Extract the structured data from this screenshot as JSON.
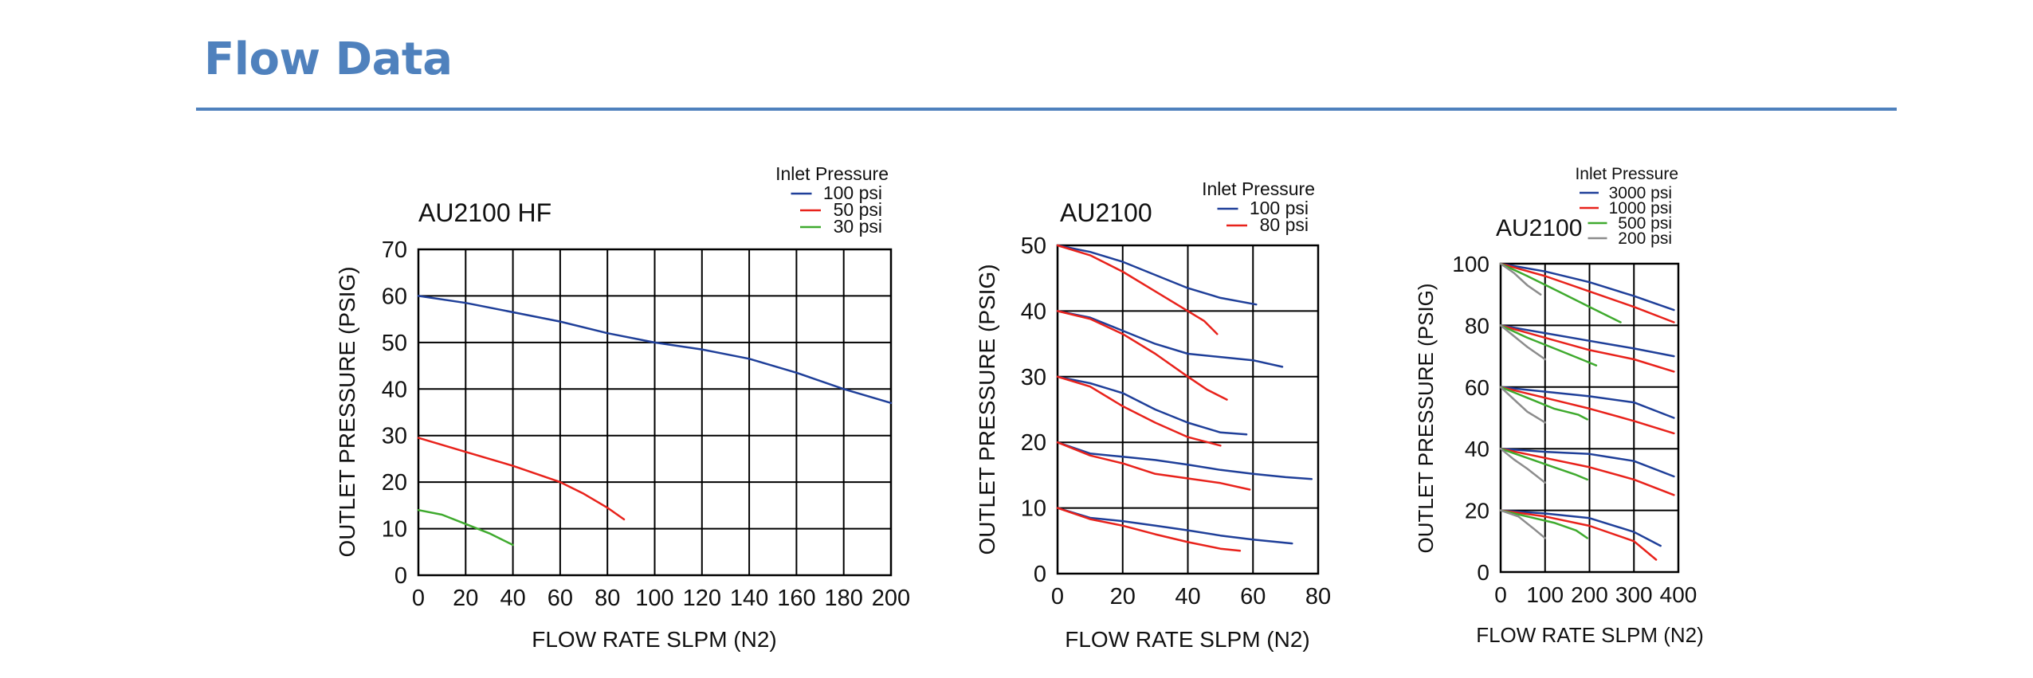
{
  "page": {
    "title": "Flow Data",
    "accent_color": "#4f81bd"
  },
  "chart_data": [
    {
      "type": "line",
      "title": "AU2100 HF",
      "xlabel": "FLOW RATE SLPM (N2)",
      "ylabel": "OUTLET PRESSURE (PSIG)",
      "legend_title": "Inlet Pressure",
      "legend_position": "top-right",
      "grid": true,
      "xlim": [
        0,
        200
      ],
      "ylim": [
        0,
        70
      ],
      "xticks": [
        0,
        20,
        40,
        60,
        80,
        100,
        120,
        140,
        160,
        180,
        200
      ],
      "yticks": [
        0,
        10,
        20,
        30,
        40,
        50,
        60,
        70
      ],
      "series": [
        {
          "name": "100 psi",
          "color": "#1f3f99",
          "curves": [
            [
              [
                0,
                60
              ],
              [
                20,
                58.5
              ],
              [
                40,
                56.5
              ],
              [
                60,
                54.5
              ],
              [
                80,
                52
              ],
              [
                100,
                50
              ],
              [
                120,
                48.5
              ],
              [
                140,
                46.5
              ],
              [
                160,
                43.5
              ],
              [
                180,
                40
              ],
              [
                200,
                37
              ]
            ]
          ]
        },
        {
          "name": "50 psi",
          "color": "#e8221b",
          "curves": [
            [
              [
                0,
                29.5
              ],
              [
                20,
                26.5
              ],
              [
                40,
                23.5
              ],
              [
                60,
                20
              ],
              [
                70,
                17.5
              ],
              [
                80,
                14.5
              ],
              [
                87,
                12
              ]
            ]
          ]
        },
        {
          "name": "30 psi",
          "color": "#3faa2e",
          "curves": [
            [
              [
                0,
                14
              ],
              [
                10,
                13
              ],
              [
                20,
                11
              ],
              [
                30,
                9
              ],
              [
                40,
                6.5
              ]
            ]
          ]
        }
      ]
    },
    {
      "type": "line",
      "title": "AU2100",
      "xlabel": "FLOW RATE SLPM (N2)",
      "ylabel": "OUTLET PRESSURE (PSIG)",
      "legend_title": "Inlet Pressure",
      "legend_position": "top-right",
      "grid": true,
      "xlim": [
        0,
        80
      ],
      "ylim": [
        0,
        50
      ],
      "xticks": [
        0,
        20,
        40,
        60,
        80
      ],
      "yticks": [
        0,
        10,
        20,
        30,
        40,
        50
      ],
      "series": [
        {
          "name": "100 psi",
          "color": "#1f3f99",
          "curves": [
            [
              [
                0,
                50
              ],
              [
                10,
                49
              ],
              [
                20,
                47.5
              ],
              [
                30,
                45.5
              ],
              [
                40,
                43.5
              ],
              [
                50,
                42
              ],
              [
                61,
                41
              ]
            ],
            [
              [
                0,
                40
              ],
              [
                10,
                39
              ],
              [
                20,
                37
              ],
              [
                30,
                35
              ],
              [
                40,
                33.5
              ],
              [
                50,
                33
              ],
              [
                60,
                32.5
              ],
              [
                69,
                31.5
              ]
            ],
            [
              [
                0,
                30
              ],
              [
                10,
                29
              ],
              [
                20,
                27.5
              ],
              [
                30,
                25
              ],
              [
                40,
                23
              ],
              [
                50,
                21.5
              ],
              [
                58,
                21.2
              ]
            ],
            [
              [
                0,
                20
              ],
              [
                10,
                18.3
              ],
              [
                20,
                17.8
              ],
              [
                30,
                17.3
              ],
              [
                40,
                16.6
              ],
              [
                50,
                15.8
              ],
              [
                60,
                15.2
              ],
              [
                70,
                14.7
              ],
              [
                78,
                14.4
              ]
            ],
            [
              [
                0,
                10
              ],
              [
                10,
                8.5
              ],
              [
                20,
                8
              ],
              [
                30,
                7.3
              ],
              [
                40,
                6.6
              ],
              [
                50,
                5.8
              ],
              [
                60,
                5.2
              ],
              [
                72,
                4.6
              ]
            ]
          ]
        },
        {
          "name": "80 psi",
          "color": "#e8221b",
          "curves": [
            [
              [
                0,
                50
              ],
              [
                10,
                48.5
              ],
              [
                20,
                46
              ],
              [
                30,
                43
              ],
              [
                40,
                40
              ],
              [
                45,
                38.5
              ],
              [
                49,
                36.5
              ]
            ],
            [
              [
                0,
                40
              ],
              [
                10,
                38.8
              ],
              [
                20,
                36.5
              ],
              [
                30,
                33.5
              ],
              [
                40,
                30
              ],
              [
                46,
                28
              ],
              [
                52,
                26.5
              ]
            ],
            [
              [
                0,
                30
              ],
              [
                10,
                28.5
              ],
              [
                20,
                25.5
              ],
              [
                30,
                23
              ],
              [
                40,
                20.8
              ],
              [
                50,
                19.5
              ]
            ],
            [
              [
                0,
                20
              ],
              [
                10,
                18
              ],
              [
                20,
                16.8
              ],
              [
                30,
                15.2
              ],
              [
                40,
                14.5
              ],
              [
                50,
                13.8
              ],
              [
                59,
                12.8
              ]
            ],
            [
              [
                0,
                10
              ],
              [
                10,
                8.3
              ],
              [
                20,
                7.3
              ],
              [
                30,
                6
              ],
              [
                40,
                4.8
              ],
              [
                50,
                3.8
              ],
              [
                56,
                3.5
              ]
            ]
          ]
        }
      ]
    },
    {
      "type": "line",
      "title": "AU2100",
      "xlabel": "FLOW RATE SLPM (N2)",
      "ylabel": "OUTLET PRESSURE (PSIG)",
      "legend_title": "Inlet Pressure",
      "legend_position": "top-right",
      "grid": true,
      "xlim": [
        0,
        400
      ],
      "ylim": [
        0,
        100
      ],
      "xticks": [
        0,
        100,
        200,
        300,
        400
      ],
      "yticks": [
        0,
        20,
        40,
        60,
        80,
        100
      ],
      "series": [
        {
          "name": "3000 psi",
          "color": "#1f3f99",
          "curves": [
            [
              [
                0,
                100
              ],
              [
                100,
                97.5
              ],
              [
                200,
                94
              ],
              [
                300,
                89.5
              ],
              [
                390,
                85
              ]
            ],
            [
              [
                0,
                80
              ],
              [
                100,
                77.5
              ],
              [
                200,
                75
              ],
              [
                300,
                72.5
              ],
              [
                390,
                70
              ]
            ],
            [
              [
                0,
                60
              ],
              [
                100,
                58.5
              ],
              [
                200,
                57
              ],
              [
                300,
                55
              ],
              [
                390,
                50
              ]
            ],
            [
              [
                0,
                40
              ],
              [
                100,
                39
              ],
              [
                200,
                38.3
              ],
              [
                300,
                36
              ],
              [
                390,
                31
              ]
            ],
            [
              [
                0,
                20
              ],
              [
                100,
                19
              ],
              [
                200,
                17.5
              ],
              [
                300,
                13
              ],
              [
                360,
                8.5
              ]
            ]
          ]
        },
        {
          "name": "1000 psi",
          "color": "#e8221b",
          "curves": [
            [
              [
                0,
                100
              ],
              [
                100,
                96
              ],
              [
                200,
                91
              ],
              [
                300,
                86
              ],
              [
                390,
                81
              ]
            ],
            [
              [
                0,
                80
              ],
              [
                100,
                76
              ],
              [
                200,
                72
              ],
              [
                300,
                69
              ],
              [
                390,
                65
              ]
            ],
            [
              [
                0,
                60
              ],
              [
                100,
                56.5
              ],
              [
                200,
                53
              ],
              [
                300,
                49
              ],
              [
                390,
                45
              ]
            ],
            [
              [
                0,
                40
              ],
              [
                100,
                37
              ],
              [
                200,
                34
              ],
              [
                300,
                30
              ],
              [
                390,
                25
              ]
            ],
            [
              [
                0,
                20
              ],
              [
                100,
                18
              ],
              [
                200,
                15
              ],
              [
                300,
                10
              ],
              [
                350,
                4
              ]
            ]
          ]
        },
        {
          "name": "500 psi",
          "color": "#3faa2e",
          "curves": [
            [
              [
                0,
                100
              ],
              [
                60,
                96
              ],
              [
                130,
                91
              ],
              [
                200,
                86
              ],
              [
                270,
                81
              ]
            ],
            [
              [
                0,
                80
              ],
              [
                60,
                76
              ],
              [
                130,
                72
              ],
              [
                190,
                68.5
              ],
              [
                215,
                67
              ]
            ],
            [
              [
                0,
                60
              ],
              [
                60,
                56.5
              ],
              [
                120,
                53
              ],
              [
                175,
                51
              ],
              [
                195,
                49.5
              ]
            ],
            [
              [
                0,
                40
              ],
              [
                60,
                37
              ],
              [
                120,
                34
              ],
              [
                170,
                31.5
              ],
              [
                195,
                30
              ]
            ],
            [
              [
                0,
                20
              ],
              [
                60,
                18
              ],
              [
                120,
                16
              ],
              [
                170,
                13.5
              ],
              [
                195,
                11
              ]
            ]
          ]
        },
        {
          "name": "200 psi",
          "color": "#8c8c8c",
          "curves": [
            [
              [
                0,
                100
              ],
              [
                30,
                97
              ],
              [
                60,
                93
              ],
              [
                90,
                90
              ]
            ],
            [
              [
                0,
                80
              ],
              [
                30,
                76.5
              ],
              [
                60,
                73
              ],
              [
                100,
                69
              ]
            ],
            [
              [
                0,
                60
              ],
              [
                30,
                56
              ],
              [
                60,
                52
              ],
              [
                100,
                48.5
              ]
            ],
            [
              [
                0,
                40
              ],
              [
                30,
                36.5
              ],
              [
                60,
                33.5
              ],
              [
                100,
                29
              ]
            ],
            [
              [
                0,
                20
              ],
              [
                40,
                18
              ],
              [
                75,
                14
              ],
              [
                100,
                11
              ]
            ]
          ]
        }
      ]
    }
  ]
}
